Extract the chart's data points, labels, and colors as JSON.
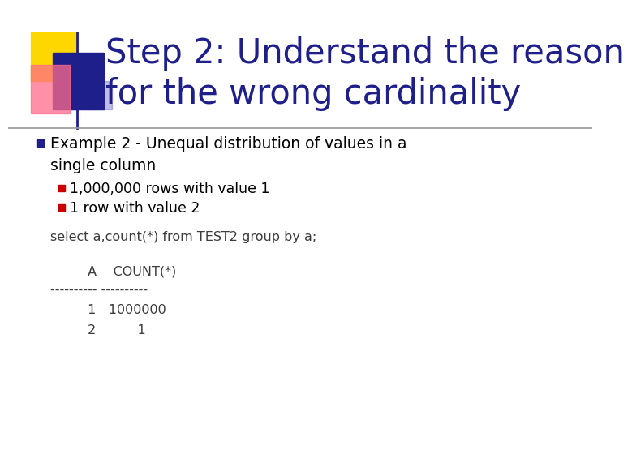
{
  "title_line1": "Step 2: Understand the reason",
  "title_line2": "for the wrong cardinality",
  "title_color": "#1F1F8B",
  "title_fontsize": 30,
  "bg_color": "#FFFFFF",
  "bullet1_line1": "Example 2 - Unequal distribution of values in a",
  "bullet1_line2": "single column",
  "bullet1_color": "#000000",
  "bullet1_square_color": "#1F1F8B",
  "sub_bullet1": "1,000,000 rows with value 1",
  "sub_bullet2": "1 row with value 2",
  "sub_bullet_color": "#000000",
  "sub_bullet_square_color": "#CC0000",
  "code_line1": "select a,count(*) from TEST2 group by a;",
  "code_line2": "         A    COUNT(*)",
  "code_line3": "---------- ----------",
  "code_line4": "         1   1000000",
  "code_line5": "         2          1",
  "code_color": "#3C3C3C",
  "separator_color": "#999999",
  "decor_yellow": "#FFD700",
  "decor_blue": "#1F1F8B",
  "decor_pink": "#FF6B8A",
  "decor_blue2": "#4444BB"
}
